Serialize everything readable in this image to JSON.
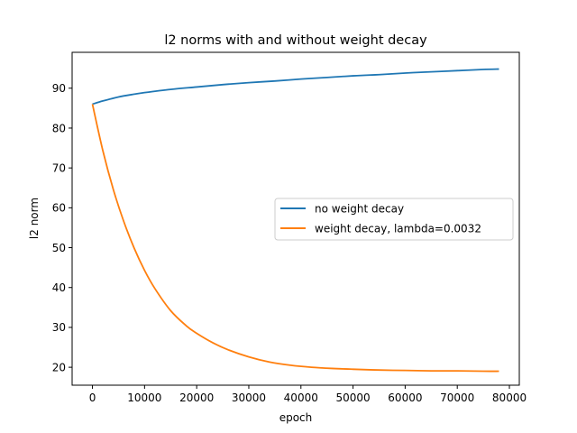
{
  "chart_data": {
    "type": "line",
    "title": "l2 norms with and without weight decay",
    "xlabel": "epoch",
    "ylabel": "l2 norm",
    "xlim": [
      -3900,
      81900
    ],
    "ylim": [
      15.5,
      99.0
    ],
    "xticks": [
      0,
      10000,
      20000,
      30000,
      40000,
      50000,
      60000,
      70000,
      80000
    ],
    "yticks": [
      20,
      30,
      40,
      50,
      60,
      70,
      80,
      90
    ],
    "grid": false,
    "legend_position": "center-right",
    "series": [
      {
        "name": "no weight decay",
        "color": "#1f77b4",
        "x": [
          0,
          2000,
          5000,
          8000,
          10000,
          15000,
          20000,
          25000,
          30000,
          35000,
          40000,
          45000,
          50000,
          55000,
          60000,
          65000,
          70000,
          75000,
          78000
        ],
        "y": [
          86.0,
          86.8,
          87.8,
          88.5,
          88.9,
          89.7,
          90.3,
          90.9,
          91.4,
          91.8,
          92.3,
          92.7,
          93.1,
          93.4,
          93.8,
          94.1,
          94.4,
          94.7,
          94.8
        ]
      },
      {
        "name": "weight decay, lambda=0.0032",
        "color": "#ff7f0e",
        "x": [
          0,
          2000,
          4000,
          6000,
          8000,
          10000,
          12000,
          15000,
          18000,
          20000,
          23000,
          26000,
          30000,
          34000,
          38000,
          42000,
          46000,
          50000,
          55000,
          60000,
          65000,
          70000,
          75000,
          78000
        ],
        "y": [
          86.0,
          74.3,
          64.6,
          56.6,
          49.9,
          44.3,
          39.7,
          34.2,
          30.4,
          28.5,
          26.2,
          24.4,
          22.6,
          21.3,
          20.5,
          20.0,
          19.7,
          19.5,
          19.3,
          19.2,
          19.1,
          19.1,
          19.0,
          19.0
        ]
      }
    ]
  }
}
